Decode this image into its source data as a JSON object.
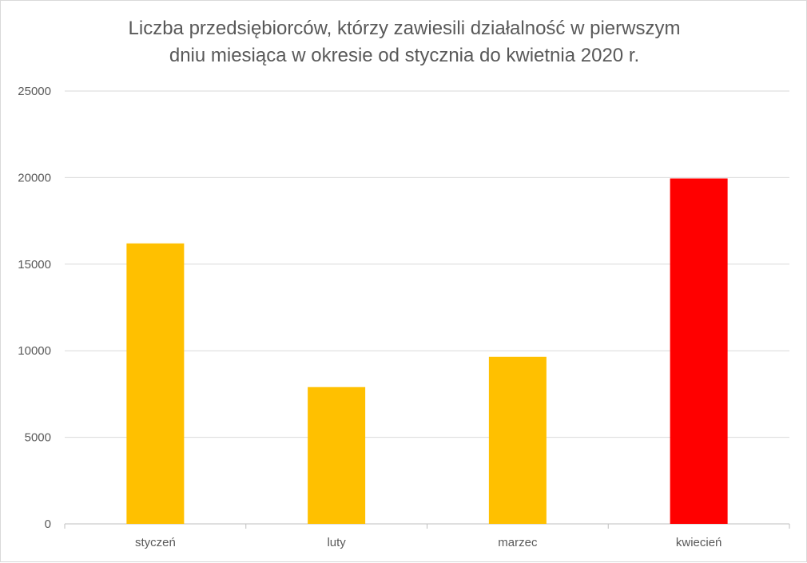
{
  "chart_data": {
    "type": "bar",
    "title_lines": [
      "Liczba przedsiębiorców, którzy zawiesili działalność w pierwszym",
      "dniu miesiąca w okresie od stycznia do kwietnia 2020 r."
    ],
    "categories": [
      "styczeń",
      "luty",
      "marzec",
      "kwiecień"
    ],
    "values": [
      16200,
      7900,
      9650,
      19950
    ],
    "bar_colors": [
      "#FFC000",
      "#FFC000",
      "#FFC000",
      "#FF0000"
    ],
    "ylim": [
      0,
      25000
    ],
    "yticks": [
      "0",
      "5000",
      "10000",
      "15000",
      "20000",
      "25000"
    ],
    "xlabel": "",
    "ylabel": "",
    "grid": true,
    "legend": "none"
  },
  "colors": {
    "grid": "#d9d9d9",
    "axis": "#bfbfbf",
    "text": "#595959"
  }
}
